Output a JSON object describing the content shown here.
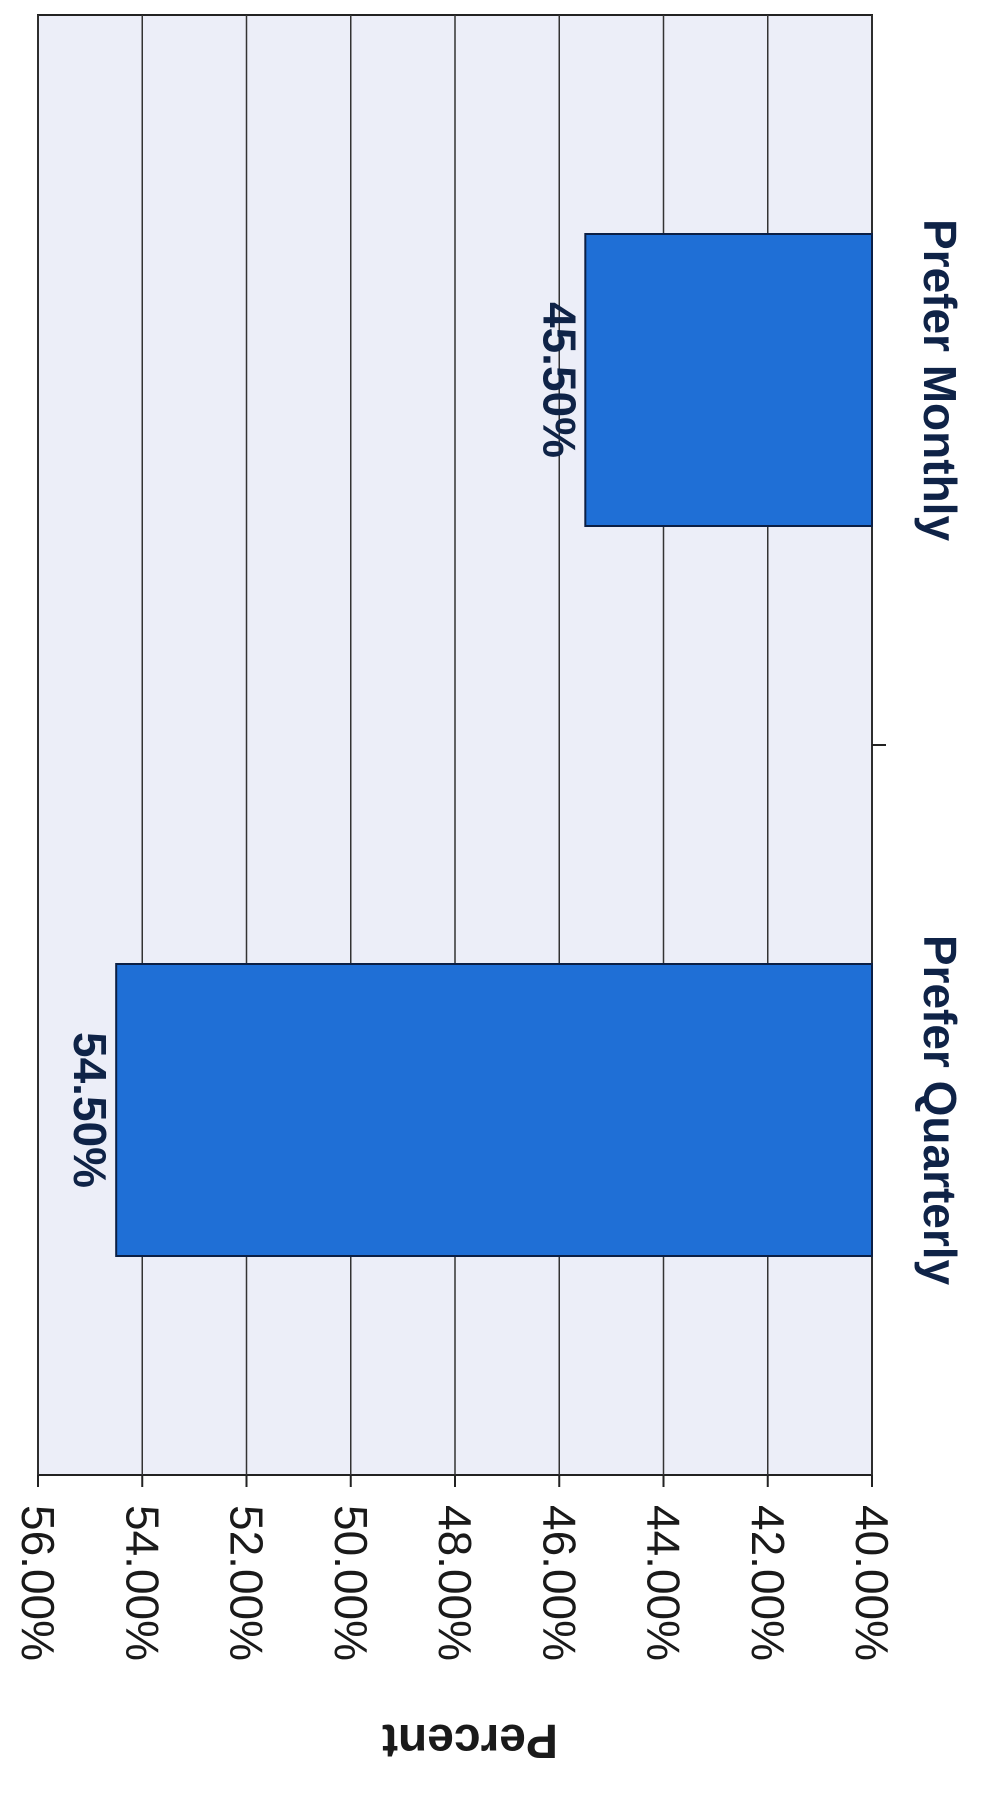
{
  "chart_data": {
    "type": "bar",
    "orientation": "vertical (page rotated 90° clockwise)",
    "categories": [
      "Prefer Quarterly",
      "Prefer Monthly"
    ],
    "values": [
      54.5,
      45.5
    ],
    "value_labels": [
      "54.50%",
      "45.50%"
    ],
    "title": "",
    "xlabel": "",
    "ylabel": "Percent",
    "ylim": [
      40,
      56
    ],
    "yticks": [
      "40.00%",
      "42.00%",
      "44.00%",
      "46.00%",
      "48.00%",
      "50.00%",
      "52.00%",
      "54.00%",
      "56.00%"
    ],
    "grid": true,
    "legend": "none",
    "bar_color": "#1f6fd6",
    "bar_border_color": "#0b1f45",
    "plot_background": "#eceef8"
  }
}
